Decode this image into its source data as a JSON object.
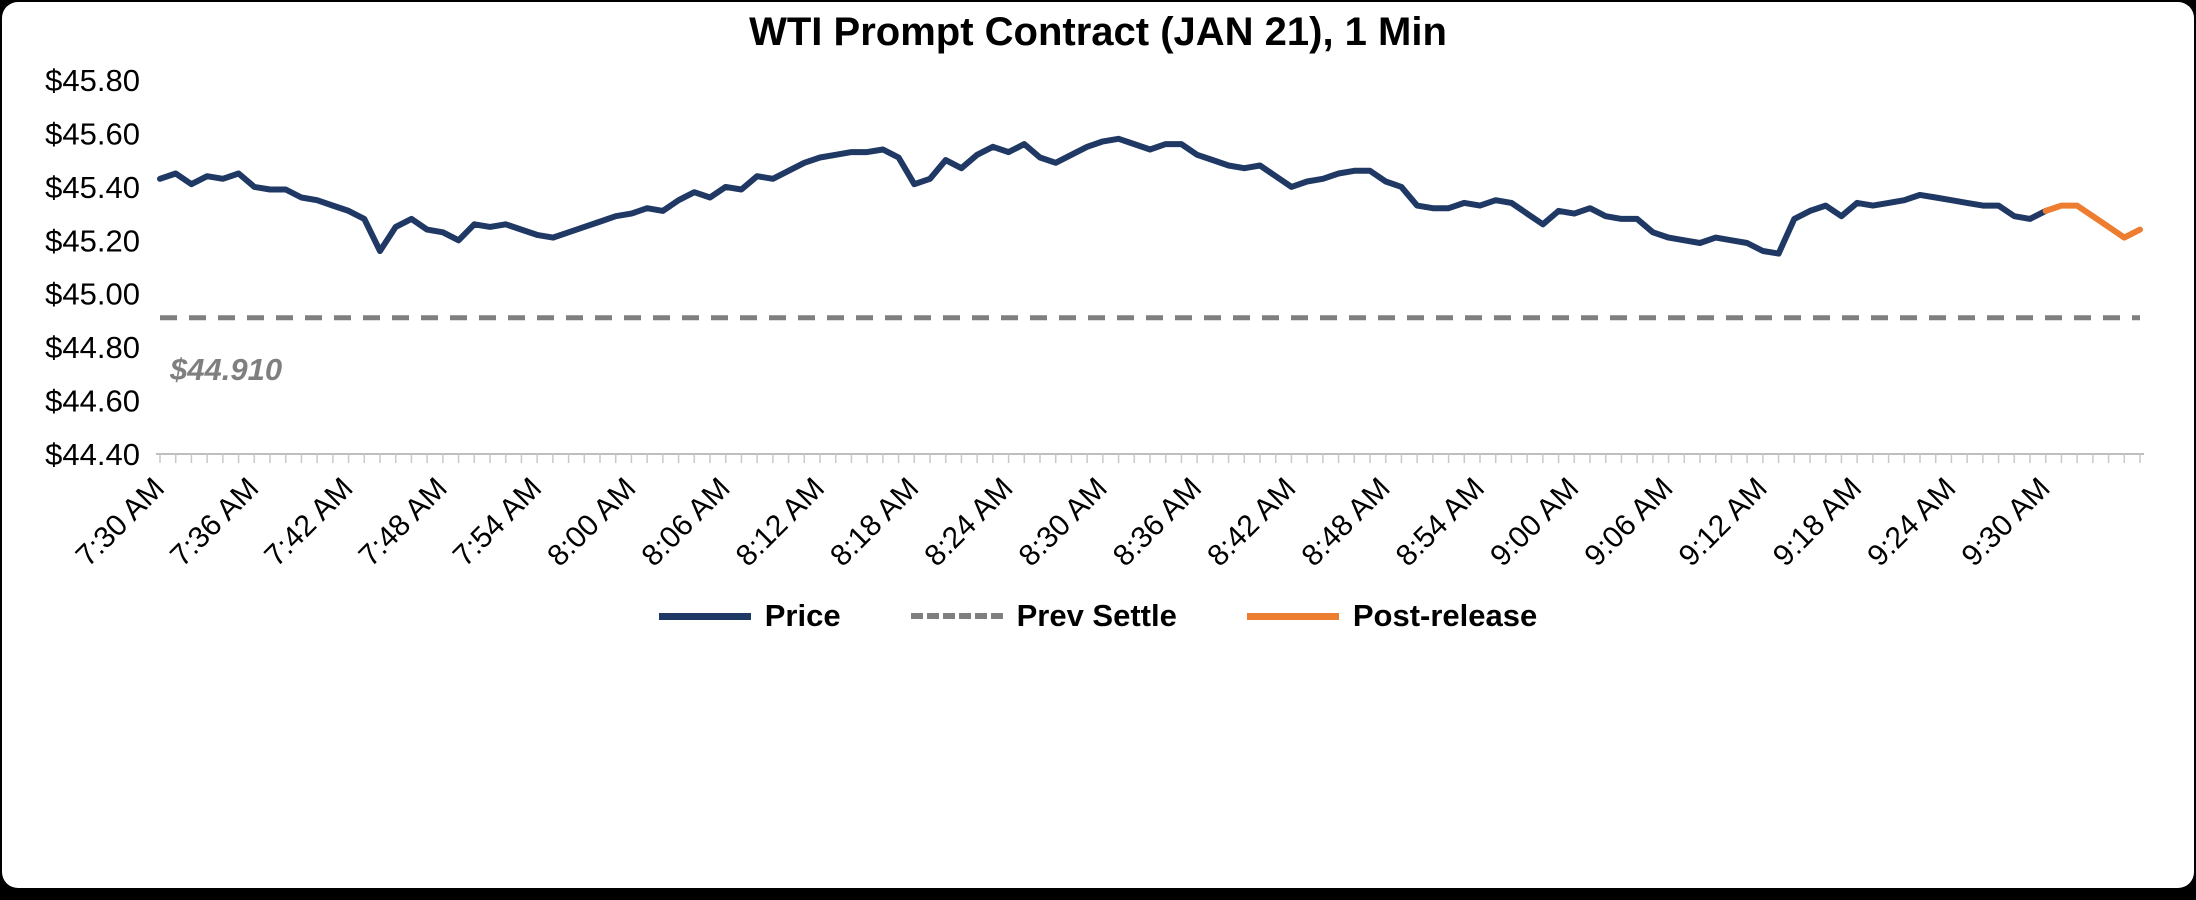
{
  "chart_data": {
    "type": "line",
    "title": "WTI Prompt Contract (JAN 21), 1 Min",
    "x_range": [
      "7:30",
      "9:36"
    ],
    "ylim": [
      44.4,
      45.8
    ],
    "yticks": [
      45.8,
      45.6,
      45.4,
      45.2,
      45.0,
      44.8,
      44.6,
      44.4
    ],
    "ytick_labels": [
      "$45.80",
      "$45.60",
      "$45.40",
      "$45.20",
      "$45.00",
      "$44.80",
      "$44.60",
      "$44.40"
    ],
    "xtick_interval_minutes": 6,
    "xtick_labels": [
      "7:30 AM",
      "7:36 AM",
      "7:42 AM",
      "7:48 AM",
      "7:54 AM",
      "8:00 AM",
      "8:06 AM",
      "8:12 AM",
      "8:18 AM",
      "8:24 AM",
      "8:30 AM",
      "8:36 AM",
      "8:42 AM",
      "8:48 AM",
      "8:54 AM",
      "9:00 AM",
      "9:06 AM",
      "9:12 AM",
      "9:18 AM",
      "9:24 AM",
      "9:30 AM"
    ],
    "grid": "off",
    "legend_position": "bottom-center",
    "prev_settle": {
      "value": 44.91,
      "label": "$44.910",
      "color": "#7f7f7f"
    },
    "colors": {
      "price": "#1f3864",
      "post_release": "#ed7d31",
      "axis": "#bfbfbf",
      "tick": "#c8c8c8"
    },
    "legend": [
      {
        "label": "Price",
        "color": "#1f3864",
        "style": "solid"
      },
      {
        "label": "Prev Settle",
        "color": "#7f7f7f",
        "style": "dashed"
      },
      {
        "label": "Post-release",
        "color": "#ed7d31",
        "style": "solid"
      }
    ],
    "series": [
      {
        "name": "Price",
        "color": "#1f3864",
        "style": "solid",
        "points": [
          [
            "7:30",
            45.43
          ],
          [
            "7:31",
            45.45
          ],
          [
            "7:32",
            45.41
          ],
          [
            "7:33",
            45.44
          ],
          [
            "7:34",
            45.43
          ],
          [
            "7:35",
            45.45
          ],
          [
            "7:36",
            45.4
          ],
          [
            "7:37",
            45.39
          ],
          [
            "7:38",
            45.39
          ],
          [
            "7:39",
            45.36
          ],
          [
            "7:40",
            45.35
          ],
          [
            "7:41",
            45.33
          ],
          [
            "7:42",
            45.31
          ],
          [
            "7:43",
            45.28
          ],
          [
            "7:44",
            45.16
          ],
          [
            "7:45",
            45.25
          ],
          [
            "7:46",
            45.28
          ],
          [
            "7:47",
            45.24
          ],
          [
            "7:48",
            45.23
          ],
          [
            "7:49",
            45.2
          ],
          [
            "7:50",
            45.26
          ],
          [
            "7:51",
            45.25
          ],
          [
            "7:52",
            45.26
          ],
          [
            "7:53",
            45.24
          ],
          [
            "7:54",
            45.22
          ],
          [
            "7:55",
            45.21
          ],
          [
            "7:56",
            45.23
          ],
          [
            "7:57",
            45.25
          ],
          [
            "7:58",
            45.27
          ],
          [
            "7:59",
            45.29
          ],
          [
            "8:00",
            45.3
          ],
          [
            "8:01",
            45.32
          ],
          [
            "8:02",
            45.31
          ],
          [
            "8:03",
            45.35
          ],
          [
            "8:04",
            45.38
          ],
          [
            "8:05",
            45.36
          ],
          [
            "8:06",
            45.4
          ],
          [
            "8:07",
            45.39
          ],
          [
            "8:08",
            45.44
          ],
          [
            "8:09",
            45.43
          ],
          [
            "8:10",
            45.46
          ],
          [
            "8:11",
            45.49
          ],
          [
            "8:12",
            45.51
          ],
          [
            "8:13",
            45.52
          ],
          [
            "8:14",
            45.53
          ],
          [
            "8:15",
            45.53
          ],
          [
            "8:16",
            45.54
          ],
          [
            "8:17",
            45.51
          ],
          [
            "8:18",
            45.41
          ],
          [
            "8:19",
            45.43
          ],
          [
            "8:20",
            45.5
          ],
          [
            "8:21",
            45.47
          ],
          [
            "8:22",
            45.52
          ],
          [
            "8:23",
            45.55
          ],
          [
            "8:24",
            45.53
          ],
          [
            "8:25",
            45.56
          ],
          [
            "8:26",
            45.51
          ],
          [
            "8:27",
            45.49
          ],
          [
            "8:28",
            45.52
          ],
          [
            "8:29",
            45.55
          ],
          [
            "8:30",
            45.57
          ],
          [
            "8:31",
            45.58
          ],
          [
            "8:32",
            45.56
          ],
          [
            "8:33",
            45.54
          ],
          [
            "8:34",
            45.56
          ],
          [
            "8:35",
            45.56
          ],
          [
            "8:36",
            45.52
          ],
          [
            "8:37",
            45.5
          ],
          [
            "8:38",
            45.48
          ],
          [
            "8:39",
            45.47
          ],
          [
            "8:40",
            45.48
          ],
          [
            "8:41",
            45.44
          ],
          [
            "8:42",
            45.4
          ],
          [
            "8:43",
            45.42
          ],
          [
            "8:44",
            45.43
          ],
          [
            "8:45",
            45.45
          ],
          [
            "8:46",
            45.46
          ],
          [
            "8:47",
            45.46
          ],
          [
            "8:48",
            45.42
          ],
          [
            "8:49",
            45.4
          ],
          [
            "8:50",
            45.33
          ],
          [
            "8:51",
            45.32
          ],
          [
            "8:52",
            45.32
          ],
          [
            "8:53",
            45.34
          ],
          [
            "8:54",
            45.33
          ],
          [
            "8:55",
            45.35
          ],
          [
            "8:56",
            45.34
          ],
          [
            "8:57",
            45.3
          ],
          [
            "8:58",
            45.26
          ],
          [
            "8:59",
            45.31
          ],
          [
            "9:00",
            45.3
          ],
          [
            "9:01",
            45.32
          ],
          [
            "9:02",
            45.29
          ],
          [
            "9:03",
            45.28
          ],
          [
            "9:04",
            45.28
          ],
          [
            "9:05",
            45.23
          ],
          [
            "9:06",
            45.21
          ],
          [
            "9:07",
            45.2
          ],
          [
            "9:08",
            45.19
          ],
          [
            "9:09",
            45.21
          ],
          [
            "9:10",
            45.2
          ],
          [
            "9:11",
            45.19
          ],
          [
            "9:12",
            45.16
          ],
          [
            "9:13",
            45.15
          ],
          [
            "9:14",
            45.28
          ],
          [
            "9:15",
            45.31
          ],
          [
            "9:16",
            45.33
          ],
          [
            "9:17",
            45.29
          ],
          [
            "9:18",
            45.34
          ],
          [
            "9:19",
            45.33
          ],
          [
            "9:20",
            45.34
          ],
          [
            "9:21",
            45.35
          ],
          [
            "9:22",
            45.37
          ],
          [
            "9:23",
            45.36
          ],
          [
            "9:24",
            45.35
          ],
          [
            "9:25",
            45.34
          ],
          [
            "9:26",
            45.33
          ],
          [
            "9:27",
            45.33
          ],
          [
            "9:28",
            45.29
          ],
          [
            "9:29",
            45.28
          ],
          [
            "9:30",
            45.31
          ]
        ]
      },
      {
        "name": "Post-release",
        "color": "#ed7d31",
        "style": "solid",
        "points": [
          [
            "9:30",
            45.31
          ],
          [
            "9:31",
            45.33
          ],
          [
            "9:32",
            45.33
          ],
          [
            "9:33",
            45.29
          ],
          [
            "9:34",
            45.25
          ],
          [
            "9:35",
            45.21
          ],
          [
            "9:36",
            45.24
          ]
        ]
      }
    ]
  }
}
